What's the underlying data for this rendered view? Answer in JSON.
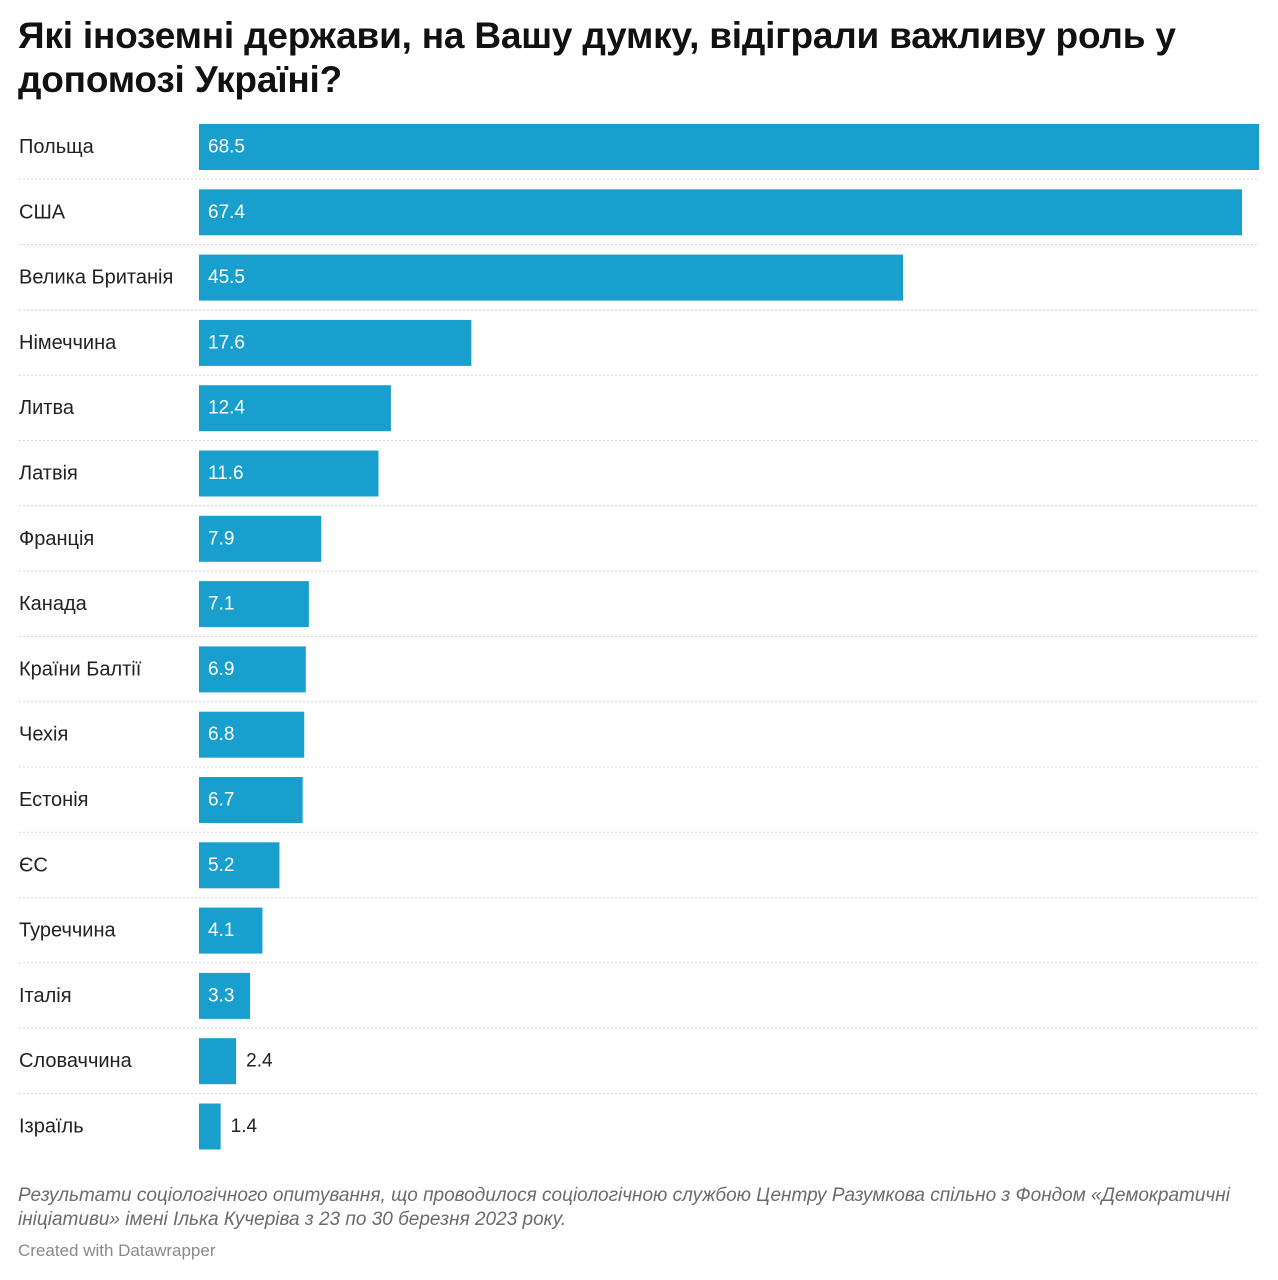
{
  "chart_data": {
    "type": "bar",
    "orientation": "horizontal",
    "title": "Які іноземні держави, на Вашу думку,  відіграли важливу роль у допомозі Україні?",
    "categories": [
      "Польща",
      "США",
      "Велика Британія",
      "Німеччина",
      "Литва",
      "Латвія",
      "Франція",
      "Канада",
      "Країни Балтії",
      "Чехія",
      "Естонія",
      "ЄС",
      "Туреччина",
      "Італія",
      "Словаччина",
      "Ізраїль"
    ],
    "values": [
      68.5,
      67.4,
      45.5,
      17.6,
      12.4,
      11.6,
      7.9,
      7.1,
      6.9,
      6.8,
      6.7,
      5.2,
      4.1,
      3.3,
      2.4,
      1.4
    ],
    "value_labels": [
      "68.5",
      "67.4",
      "45.5",
      "17.6",
      "12.4",
      "11.6",
      "7.9",
      "7.1",
      "6.9",
      "6.8",
      "6.7",
      "5.2",
      "4.1",
      "3.3",
      "2.4",
      "1.4"
    ],
    "xlim": [
      0,
      68.5
    ],
    "grid": false,
    "bar_color": "#199fcd",
    "separator_color": "#d6d6d6",
    "note": "Результати соціологічного опитування, що проводилося соціологічною службою Центру Разумкова спільно з Фондом «Демократичні ініціативи» імені Ілька Кучеріва з 23  по 30 березня 2023 року.",
    "credit": "Created with Datawrapper"
  }
}
